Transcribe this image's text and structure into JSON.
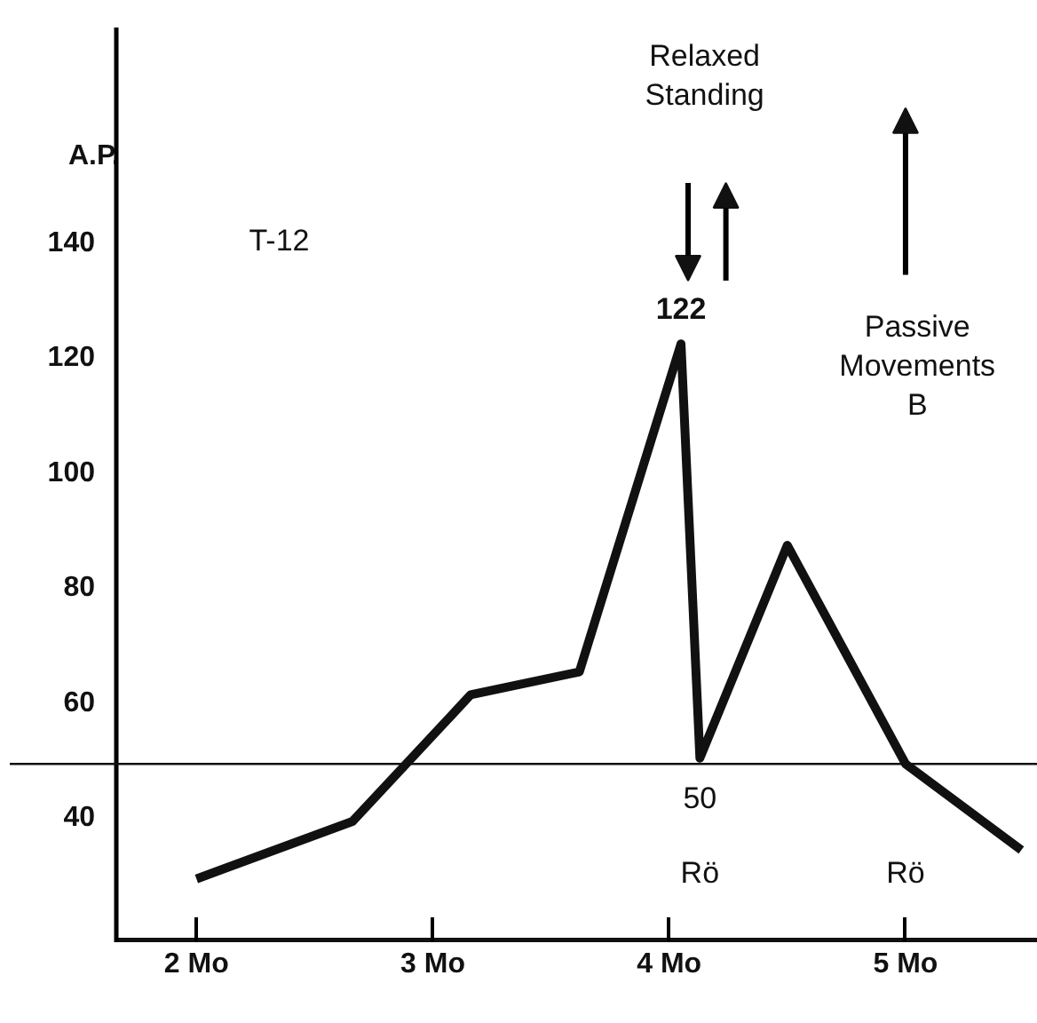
{
  "chart_data": {
    "type": "line",
    "ylabel": "A.P.",
    "x": [
      2.0,
      2.66,
      3.16,
      3.62,
      4.05,
      4.13,
      4.5,
      5.0,
      5.49
    ],
    "series": [
      {
        "color": "#111111",
        "values": [
          29,
          39,
          61,
          65,
          122,
          50,
          87,
          49,
          34
        ]
      }
    ],
    "xlim": [
      1.21,
      5.56
    ],
    "ylim": [
      18,
      177
    ],
    "xticks": [
      {
        "value": 2,
        "label": "2 Mo"
      },
      {
        "value": 3,
        "label": "3 Mo"
      },
      {
        "value": 4,
        "label": "4 Mo"
      },
      {
        "value": 5,
        "label": "5 Mo"
      }
    ],
    "yticks": [
      40,
      60,
      80,
      100,
      120,
      140
    ],
    "grid": false,
    "marker": "none",
    "line_style": "solid",
    "ref_lines": [
      {
        "axis": "y",
        "value": 49,
        "color": "#111111"
      }
    ],
    "annotations": [
      "T-12",
      {
        "text": "122",
        "x": 4.05,
        "y": 122
      },
      {
        "text": "50",
        "x": 4.13,
        "y": 50
      },
      "Rö",
      "Rö",
      "Relaxed\nStanding",
      "Passive\nMovements\nB"
    ]
  }
}
